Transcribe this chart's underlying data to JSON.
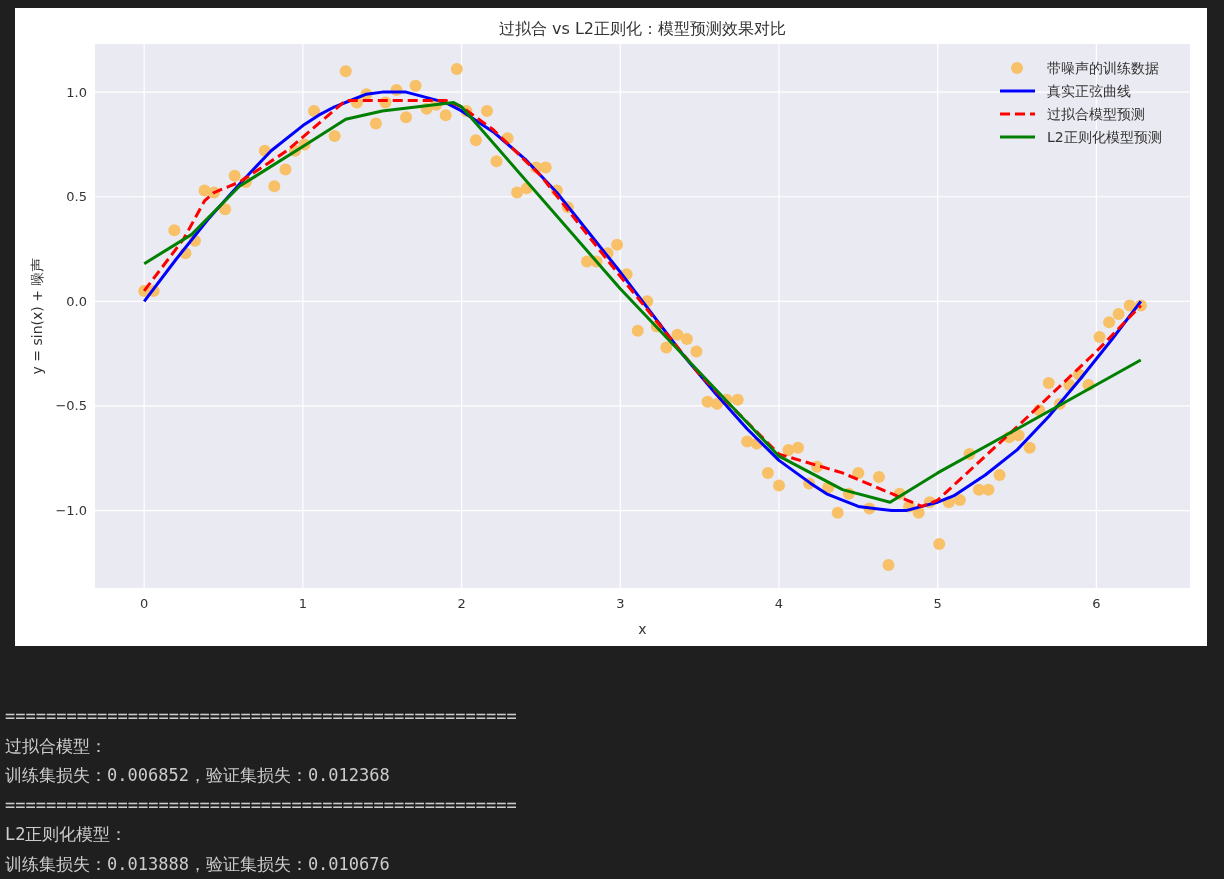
{
  "chart_data": {
    "type": "line",
    "title": "过拟合 vs L2正则化：模型预测效果对比",
    "xlabel": "x",
    "ylabel": "y = sin(x) + 噪声",
    "xlim": [
      -0.31,
      6.59
    ],
    "ylim": [
      -1.37,
      1.23
    ],
    "xticks": [
      0,
      1,
      2,
      3,
      4,
      5,
      6
    ],
    "yticks": [
      {
        "value": -1.0,
        "label": "−1.0"
      },
      {
        "value": -0.5,
        "label": "−0.5"
      },
      {
        "value": 0.0,
        "label": "0.0"
      },
      {
        "value": 0.5,
        "label": "0.5"
      },
      {
        "value": 1.0,
        "label": "1.0"
      }
    ],
    "grid": true,
    "legend": "top right",
    "series": [
      {
        "name": "带噪声的训练数据",
        "type": "scatter",
        "marker": "circle",
        "color": "#f8c067",
        "x": [
          0,
          0.06,
          0.19,
          0.26,
          0.32,
          0.38,
          0.44,
          0.51,
          0.57,
          0.64,
          0.76,
          0.82,
          0.89,
          0.95,
          1.01,
          1.07,
          1.2,
          1.27,
          1.34,
          1.4,
          1.46,
          1.52,
          1.59,
          1.65,
          1.71,
          1.78,
          1.84,
          1.9,
          1.97,
          2.03,
          2.09,
          2.16,
          2.22,
          2.29,
          2.35,
          2.41,
          2.47,
          2.53,
          2.6,
          2.67,
          2.79,
          2.85,
          2.92,
          2.98,
          3.04,
          3.11,
          3.17,
          3.23,
          3.29,
          3.36,
          3.42,
          3.48,
          3.55,
          3.61,
          3.67,
          3.74,
          3.8,
          3.86,
          3.93,
          4.0,
          4.06,
          4.12,
          4.19,
          4.24,
          4.31,
          4.37,
          4.44,
          4.5,
          4.57,
          4.63,
          4.69,
          4.76,
          4.82,
          4.88,
          4.95,
          5.01,
          5.07,
          5.14,
          5.2,
          5.26,
          5.32,
          5.39,
          5.45,
          5.51,
          5.58,
          5.64,
          5.7,
          5.77,
          5.83,
          5.89,
          5.95,
          6.02,
          6.08,
          6.14,
          6.21,
          6.28
        ],
        "values": [
          0.05,
          0.05,
          0.34,
          0.23,
          0.29,
          0.53,
          0.52,
          0.44,
          0.6,
          0.57,
          0.72,
          0.55,
          0.63,
          0.72,
          0.75,
          0.91,
          0.79,
          1.1,
          0.95,
          0.99,
          0.85,
          0.95,
          1.01,
          0.88,
          1.03,
          0.92,
          0.94,
          0.89,
          1.11,
          0.91,
          0.77,
          0.91,
          0.67,
          0.78,
          0.52,
          0.54,
          0.64,
          0.64,
          0.53,
          0.45,
          0.19,
          0.19,
          0.23,
          0.27,
          0.13,
          -0.14,
          0.0,
          -0.12,
          -0.22,
          -0.16,
          -0.18,
          -0.24,
          -0.48,
          -0.49,
          -0.47,
          -0.47,
          -0.67,
          -0.68,
          -0.82,
          -0.88,
          -0.71,
          -0.7,
          -0.87,
          -0.79,
          -0.89,
          -1.01,
          -0.92,
          -0.82,
          -0.99,
          -0.84,
          -1.26,
          -0.92,
          -0.98,
          -1.01,
          -0.96,
          -1.16,
          -0.96,
          -0.95,
          -0.73,
          -0.9,
          -0.9,
          -0.83,
          -0.65,
          -0.64,
          -0.7,
          -0.52,
          -0.39,
          -0.49,
          -0.4,
          -0.35,
          -0.4,
          -0.17,
          -0.1,
          -0.06,
          -0.02,
          -0.02
        ]
      },
      {
        "name": "真实正弦曲线",
        "color": "#0000ff",
        "line_style": "solid",
        "x": [
          0,
          0.2,
          0.4,
          0.6,
          0.8,
          1.0,
          1.1,
          1.2,
          1.3,
          1.4,
          1.5,
          1.57,
          1.65,
          1.8,
          1.9,
          2.0,
          2.2,
          2.4,
          2.6,
          2.8,
          3.0,
          3.2,
          3.4,
          3.6,
          3.8,
          4.0,
          4.2,
          4.3,
          4.4,
          4.5,
          4.6,
          4.71,
          4.8,
          4.9,
          5.0,
          5.1,
          5.3,
          5.5,
          5.7,
          5.9,
          6.1,
          6.28
        ],
        "values": [
          0,
          0.2,
          0.39,
          0.56,
          0.72,
          0.84,
          0.89,
          0.93,
          0.96,
          0.99,
          1.0,
          1.0,
          1.0,
          0.97,
          0.95,
          0.91,
          0.81,
          0.68,
          0.52,
          0.33,
          0.14,
          -0.06,
          -0.26,
          -0.44,
          -0.61,
          -0.76,
          -0.87,
          -0.92,
          -0.95,
          -0.98,
          -0.99,
          -1.0,
          -1.0,
          -0.98,
          -0.96,
          -0.93,
          -0.83,
          -0.71,
          -0.55,
          -0.37,
          -0.18,
          0.0
        ]
      },
      {
        "name": "过拟合模型预测",
        "color": "#ff0000",
        "line_style": "dashed",
        "x": [
          0,
          0.1,
          0.25,
          0.38,
          0.44,
          0.6,
          0.9,
          1.27,
          1.5,
          1.9,
          2.0,
          2.2,
          2.5,
          3.0,
          3.5,
          4.0,
          4.4,
          4.9,
          5.0,
          5.5,
          6.0,
          6.28
        ],
        "values": [
          0.05,
          0.15,
          0.3,
          0.48,
          0.52,
          0.57,
          0.72,
          0.96,
          0.96,
          0.96,
          0.93,
          0.82,
          0.6,
          0.12,
          -0.35,
          -0.73,
          -0.82,
          -0.98,
          -0.95,
          -0.6,
          -0.24,
          -0.02
        ]
      },
      {
        "name": "L2正则化模型预测",
        "color": "#008000",
        "line_style": "solid",
        "x": [
          0,
          0.3,
          0.6,
          1.0,
          1.27,
          1.5,
          1.95,
          2.0,
          3.0,
          4.0,
          4.4,
          4.7,
          5.0,
          5.5,
          6.28
        ],
        "values": [
          0.18,
          0.32,
          0.55,
          0.74,
          0.87,
          0.91,
          0.95,
          0.93,
          0.06,
          -0.74,
          -0.9,
          -0.96,
          -0.82,
          -0.61,
          -0.28
        ]
      }
    ],
    "annotations": [
      "==================================================",
      "过拟合模型：",
      "训练集损失：0.006852，验证集损失：0.012368",
      "==================================================",
      "L2正则化模型：",
      "训练集损失：0.013888，验证集损失：0.010676"
    ]
  }
}
